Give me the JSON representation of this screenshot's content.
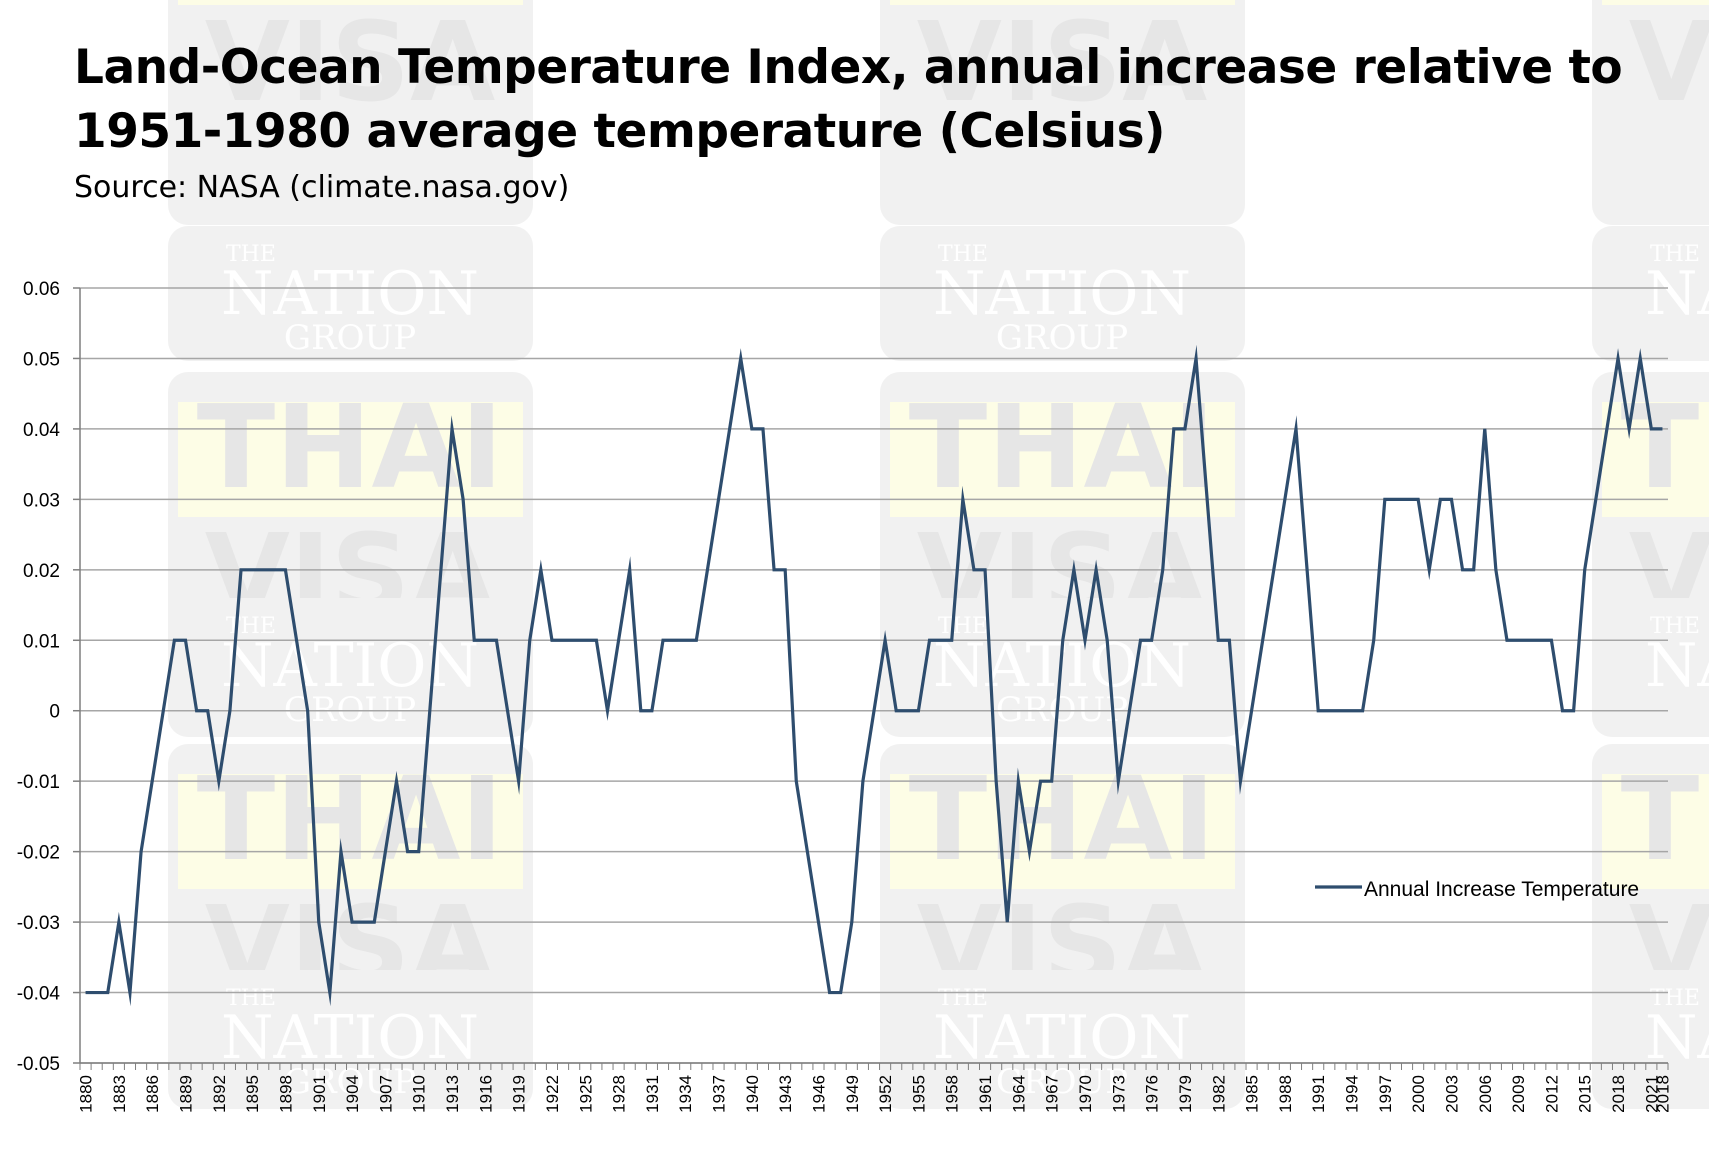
{
  "chart_data": {
    "type": "line",
    "title": "Land-Ocean Temperature Index, annual increase relative to 1951-1980 average temperature (Celsius)",
    "subtitle": "Source: NASA (climate.nasa.gov)",
    "xlabel": "",
    "ylabel": "",
    "ylim": [
      -0.05,
      0.06
    ],
    "yticks": [
      "0.06",
      "0.05",
      "0.04",
      "0.03",
      "0.02",
      "0.01",
      "0",
      "-0.01",
      "-0.02",
      "-0.03",
      "-0.04",
      "-0.05"
    ],
    "grid": true,
    "legend_position": "right",
    "x_start": 1880,
    "x_end": 2018,
    "x_tick_every": 3,
    "series": [
      {
        "name": "Annual Increase Temperature",
        "color": "#2e4d6e",
        "values": [
          -0.04,
          -0.04,
          -0.04,
          -0.03,
          -0.04,
          -0.02,
          -0.01,
          0.0,
          0.01,
          0.01,
          0.0,
          0.0,
          -0.01,
          0.0,
          0.02,
          0.02,
          0.02,
          0.02,
          0.02,
          0.01,
          0.0,
          -0.03,
          -0.04,
          -0.02,
          -0.03,
          -0.03,
          -0.03,
          -0.02,
          -0.01,
          -0.02,
          -0.02,
          0.0,
          0.02,
          0.04,
          0.03,
          0.01,
          0.01,
          0.01,
          0.0,
          -0.01,
          0.01,
          0.02,
          0.01,
          0.01,
          0.01,
          0.01,
          0.01,
          0.0,
          0.01,
          0.02,
          0.0,
          0.0,
          0.01,
          0.01,
          0.01,
          0.01,
          0.02,
          0.03,
          0.04,
          0.05,
          0.04,
          0.04,
          0.02,
          0.02,
          -0.01,
          -0.02,
          -0.03,
          -0.04,
          -0.04,
          -0.03,
          -0.01,
          0.0,
          0.01,
          0.0,
          0.0,
          0.0,
          0.01,
          0.01,
          0.01,
          0.03,
          0.02,
          0.02,
          -0.01,
          -0.03,
          -0.01,
          -0.02,
          -0.01,
          -0.01,
          0.01,
          0.02,
          0.01,
          0.02,
          0.01,
          -0.01,
          0.0,
          0.01,
          0.01,
          0.02,
          0.04,
          0.04,
          0.05,
          0.03,
          0.01,
          0.01,
          -0.01,
          0.0,
          0.01,
          0.02,
          0.03,
          0.04,
          0.02,
          0.0,
          0.0,
          0.0,
          0.0,
          0.0,
          0.01,
          0.03,
          0.03,
          0.03,
          0.03,
          0.02,
          0.03,
          0.03,
          0.02,
          0.02,
          0.04,
          0.02,
          0.01,
          0.01,
          0.01,
          0.01,
          0.01,
          0.0,
          0.0,
          0.02,
          0.03,
          0.04,
          0.05,
          0.04,
          0.05,
          0.04,
          0.04
        ]
      }
    ]
  },
  "watermark": {
    "line1": "THAI",
    "line2": "VISA",
    "brand_top": "THE",
    "brand_main": "NATION",
    "brand_bottom": "GROUP"
  },
  "colors": {
    "line": "#2e4d6e",
    "grid": "#a6a6a6",
    "axis": "#7f7f7f",
    "tile": "#f1f1f1",
    "tile_yellow": "#fdfde6",
    "wm_text": "#e6e6e6",
    "wm_brand": "#ffffff",
    "wm_accent": "#f2c9c9"
  }
}
